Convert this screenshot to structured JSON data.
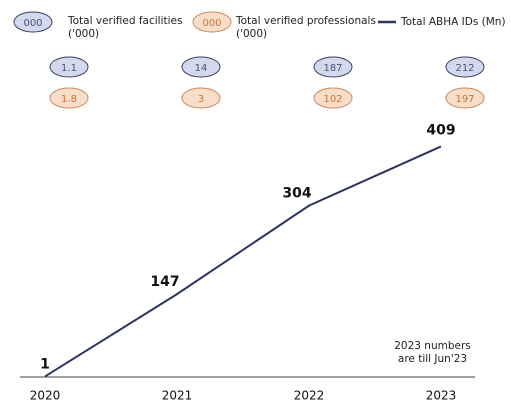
{
  "chart_data": {
    "type": "line",
    "categories": [
      "2020",
      "2021",
      "2022",
      "2023"
    ],
    "series": [
      {
        "name": "Total ABHA IDs (Mn)",
        "color": "#2e3560",
        "values": [
          1,
          147,
          304,
          409
        ]
      }
    ],
    "ylim": [
      0,
      430
    ],
    "badge_rows": [
      {
        "name": "Total verified facilities ('000)",
        "marker_label": "000",
        "fill": "#d3d8ec",
        "stroke": "#3a4266",
        "text_color": "#4a5484",
        "values": [
          1.1,
          14,
          187,
          212
        ]
      },
      {
        "name": "Total verified professionals ('000)",
        "marker_label": "000",
        "fill": "#f8ddc9",
        "stroke": "#c98a5e",
        "text_color": "#c8763a",
        "values": [
          1.8,
          3,
          102,
          197
        ]
      }
    ],
    "annotation": "2023 numbers are till Jun'23"
  }
}
